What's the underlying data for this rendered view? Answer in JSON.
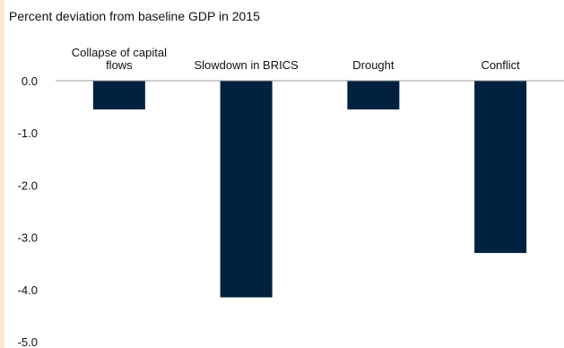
{
  "chart_data": {
    "type": "bar",
    "title": "Percent deviation from baseline GDP in 2015",
    "categories": [
      [
        "Collapse of capital",
        "flows"
      ],
      [
        "Slowdown in BRICS"
      ],
      [
        "Drought"
      ],
      [
        "Conflict"
      ]
    ],
    "values": [
      -0.55,
      -4.15,
      -0.55,
      -3.3
    ],
    "yticks": [
      "0.0",
      "-1.0",
      "-2.0",
      "-3.0",
      "-4.0",
      "-5.0"
    ],
    "ylim": [
      -5,
      0
    ],
    "xlabel": "",
    "ylabel": "",
    "grid": false,
    "bar_color": "#00213f",
    "axis_color": "#9a9a9a"
  }
}
